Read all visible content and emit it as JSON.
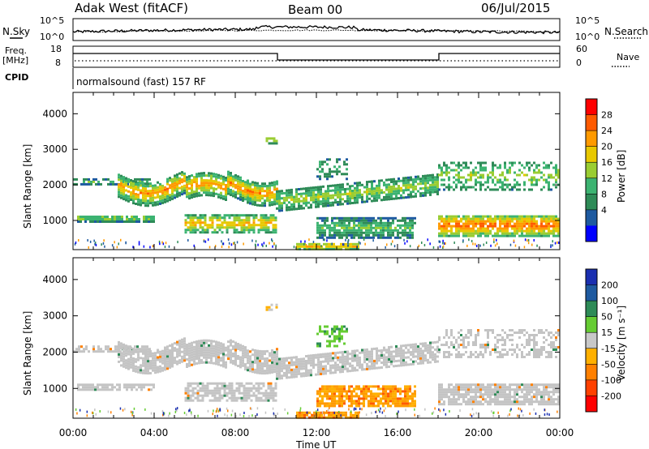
{
  "header": {
    "station": "Adak West (fitACF)",
    "beam": "Beam 00",
    "date": "06/Jul/2015"
  },
  "panels": {
    "nsky_label": "N.Sky",
    "nsearch_label": "N.Search",
    "nsky_ticks": [
      "10^5",
      "10^0"
    ],
    "nsearch_ticks": [
      "10^5",
      "10^0"
    ],
    "freq_label_1": "Freq.",
    "freq_label_2": "[MHz]",
    "freq_ticks": [
      "18",
      "8"
    ],
    "nave_label": "Nave",
    "nave_ticks": [
      "60",
      "0"
    ],
    "cpid_label": "CPID",
    "cpid_text": "normalsound (fast) 157 RF"
  },
  "chart_data": [
    {
      "type": "heatmap",
      "quantity": "Power",
      "ylabel": "Slant Range [km]",
      "xlabel": "Time UT",
      "x_ticks": [
        "00:00",
        "04:00",
        "08:00",
        "12:00",
        "16:00",
        "20:00",
        "00:00"
      ],
      "xlim_hours": [
        0,
        24
      ],
      "y_ticks": [
        1000,
        2000,
        3000,
        4000
      ],
      "ylim_km": [
        180,
        4600
      ],
      "colorbar": {
        "label": "Power [dB]",
        "ticks": [
          "28",
          "24",
          "20",
          "16",
          "12",
          "8",
          "4"
        ],
        "colors": [
          "#ff0000",
          "#ff5a00",
          "#ff9a00",
          "#e8c800",
          "#9acd32",
          "#3cb371",
          "#2e8b57",
          "#1e5aa0",
          "#0000ff"
        ]
      }
    },
    {
      "type": "heatmap",
      "quantity": "Velocity",
      "ylabel": "Slant Range [km]",
      "xlabel": "Time UT",
      "x_ticks": [
        "00:00",
        "04:00",
        "08:00",
        "12:00",
        "16:00",
        "20:00",
        "00:00"
      ],
      "xlim_hours": [
        0,
        24
      ],
      "y_ticks": [
        1000,
        2000,
        3000,
        4000
      ],
      "ylim_km": [
        180,
        4600
      ],
      "colorbar": {
        "label": "Velocity [m s⁻¹]",
        "ticks": [
          "200",
          "100",
          "50",
          "15",
          "-15",
          "-50",
          "-100",
          "-200"
        ],
        "colors": [
          "#1a2fb0",
          "#1e5aa0",
          "#2e8b57",
          "#66cc33",
          "#c8c8c8",
          "#ffb000",
          "#ff8000",
          "#ff4000",
          "#ff0000"
        ]
      }
    }
  ],
  "colors": {
    "frame": "#000000",
    "ground_scatter": "#c0c0c0"
  }
}
